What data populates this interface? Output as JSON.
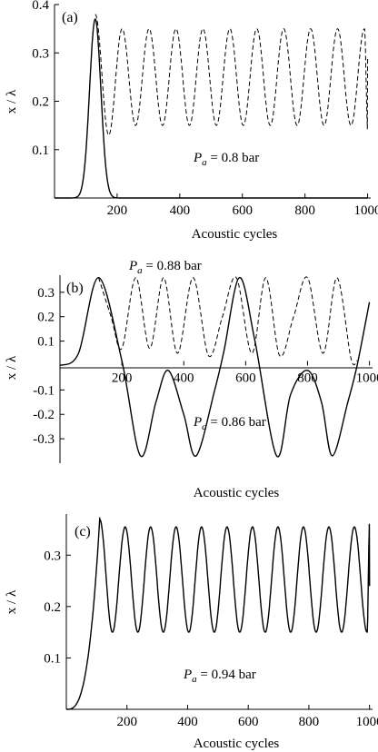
{
  "chart_data": [
    {
      "panel": "(a)",
      "type": "line",
      "xlabel": "Acoustic cycles",
      "ylabel": "x / λ",
      "xlim": [
        0,
        1010
      ],
      "ylim": [
        0,
        0.4
      ],
      "xticks": [
        "200",
        "400",
        "600",
        "800",
        "1000"
      ],
      "yticks": [
        "0.1",
        "0.2",
        "0.3",
        "0.4"
      ],
      "annotations": [
        {
          "P": "P",
          "sub": "a",
          "text": " = 0.8 bar"
        }
      ],
      "series": [
        {
          "style": "solid",
          "kind": "pulse",
          "params": {
            "start": 0,
            "peak_x": 130,
            "peak_y": 0.37,
            "width": 28,
            "end": 1000
          }
        },
        {
          "style": "dashed",
          "kind": "oscillation",
          "params": {
            "x0": 130,
            "x1": 1000,
            "first_peak": 0.38,
            "first_trough": 0.13,
            "peak": 0.35,
            "trough": 0.15,
            "period": 86,
            "end_y": 0.29
          }
        }
      ]
    },
    {
      "panel": "(b)",
      "type": "line",
      "xlabel": "Acoustic cycles",
      "ylabel": "x / λ",
      "xlim": [
        0,
        1010
      ],
      "ylim": [
        -0.4,
        0.37
      ],
      "xticks": [
        "200",
        "400",
        "600",
        "800",
        "1000"
      ],
      "yticks": [
        "-0.3",
        "-0.2",
        "-0.1",
        "0.1",
        "0.2",
        "0.3"
      ],
      "annotations": [
        {
          "P": "P",
          "sub": "a",
          "text": " = 0.88 bar"
        },
        {
          "P": "P",
          "sub": "a",
          "text": " = 0.86 bar"
        }
      ],
      "series": [
        {
          "name": "P_a = 0.88 bar",
          "style": "dashed",
          "points": [
            [
              125,
              0.36
            ],
            [
              165,
              0.2
            ],
            [
              200,
              0.07
            ],
            [
              245,
              0.36
            ],
            [
              290,
              0.07
            ],
            [
              335,
              0.36
            ],
            [
              380,
              0.05
            ],
            [
              430,
              0.36
            ],
            [
              480,
              0.04
            ],
            [
              525,
              0.2
            ],
            [
              570,
              0.36
            ],
            [
              620,
              0.05
            ],
            [
              665,
              0.36
            ],
            [
              710,
              0.04
            ],
            [
              755,
              0.2
            ],
            [
              800,
              0.36
            ],
            [
              850,
              0.05
            ],
            [
              895,
              0.36
            ],
            [
              940,
              0.03
            ],
            [
              960,
              0.02
            ]
          ]
        },
        {
          "name": "P_a = 0.86 bar",
          "style": "solid",
          "points": [
            [
              0,
              0.0
            ],
            [
              60,
              0.05
            ],
            [
              125,
              0.36
            ],
            [
              200,
              0.02
            ],
            [
              260,
              -0.37
            ],
            [
              310,
              -0.15
            ],
            [
              350,
              -0.02
            ],
            [
              400,
              -0.2
            ],
            [
              440,
              -0.37
            ],
            [
              500,
              -0.1
            ],
            [
              530,
              0.06
            ],
            [
              580,
              0.36
            ],
            [
              630,
              0.1
            ],
            [
              700,
              -0.37
            ],
            [
              745,
              -0.12
            ],
            [
              800,
              -0.02
            ],
            [
              845,
              -0.15
            ],
            [
              880,
              -0.37
            ],
            [
              930,
              -0.15
            ],
            [
              960,
              0.0
            ],
            [
              1000,
              0.26
            ]
          ]
        }
      ]
    },
    {
      "panel": "(c)",
      "type": "line",
      "xlabel": "Acoustic cycles",
      "ylabel": "x / λ",
      "xlim": [
        0,
        1010
      ],
      "ylim": [
        0,
        0.38
      ],
      "xticks": [
        "200",
        "400",
        "600",
        "800",
        "1000"
      ],
      "yticks": [
        "0.1",
        "0.2",
        "0.3"
      ],
      "annotations": [
        {
          "P": "P",
          "sub": "a",
          "text": " = 0.94 bar"
        }
      ],
      "series": [
        {
          "style": "solid",
          "kind": "oscillation",
          "params": {
            "x0": 110,
            "x1": 1000,
            "first_peak": 0.37,
            "first_trough": 0.15,
            "peak": 0.355,
            "trough": 0.15,
            "period": 84,
            "end_y": 0.24,
            "rise_start": 0
          }
        }
      ]
    }
  ]
}
